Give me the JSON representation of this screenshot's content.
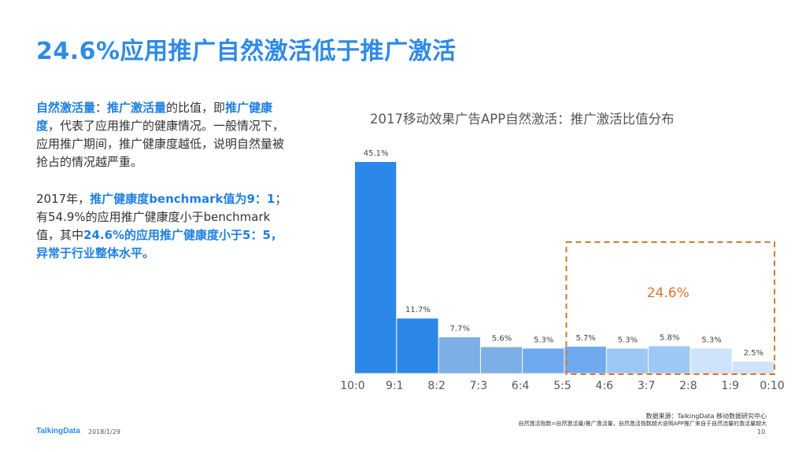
{
  "page": {
    "title": "24.6%应用推广自然激活低于推广激活",
    "logo": "TalkingData",
    "date": "2018/1/29",
    "page_number": "10",
    "source_line1": "数据来源：TalkingData 移动数据研究中心",
    "source_line2": "自然激活指数=自然激活量/推广激活量，自然激活指数越大说明APP推广来自于自然流量的激活量越大"
  },
  "description": {
    "p1": [
      {
        "text": "自然激活量",
        "hl": true
      },
      {
        "text": "：",
        "hl": false
      },
      {
        "text": "推广激活量",
        "hl": true
      },
      {
        "text": "的比值，即",
        "hl": false
      },
      {
        "text": "推广健康度",
        "hl": true
      },
      {
        "text": "，代表了应用推广的健康情况。一般情况下，应用推广期间，推广健康度越低，说明自然量被抢占的情况越严重。",
        "hl": false
      }
    ],
    "p2": [
      {
        "text": "2017年，",
        "hl": false
      },
      {
        "text": "推广健康度benchmark值为9：1",
        "hl": true
      },
      {
        "text": "；有54.9%的应用推广健康度小于benchmark值，其中",
        "hl": false
      },
      {
        "text": "24.6%的应用推广健康度小于5：5，异常于行业整体水平。",
        "hl": true
      }
    ]
  },
  "chart_data": {
    "type": "bar",
    "title": "2017移动效果广告APP自然激活：推广激活比值分布",
    "x_tick_labels": [
      "10:0",
      "9:1",
      "8:2",
      "7:3",
      "6:4",
      "5:5",
      "4:6",
      "3:7",
      "2:8",
      "1:9",
      "0:10"
    ],
    "bins": [
      "10:0-9:1",
      "9:1-8:2",
      "8:2-7:3",
      "7:3-6:4",
      "6:4-5:5",
      "5:5-4:6",
      "4:6-3:7",
      "3:7-2:8",
      "2:8-1:9",
      "1:9-0:10"
    ],
    "values": [
      45.1,
      11.7,
      7.7,
      5.6,
      5.3,
      5.7,
      5.3,
      5.8,
      5.3,
      2.5
    ],
    "data_labels": [
      "45.1%",
      "11.7%",
      "7.7%",
      "5.6%",
      "5.3%",
      "5.7%",
      "5.3%",
      "5.8%",
      "5.3%",
      "2.5%"
    ],
    "colors": [
      "#2B87E8",
      "#2B87E8",
      "#7DAEE6",
      "#7DAEE6",
      "#6FAAF0",
      "#6FAAF0",
      "#9DC8F5",
      "#9DC8F5",
      "#CFE4FA",
      "#CFE4FA"
    ],
    "ylim": [
      0,
      45.1
    ],
    "annotation": {
      "text": "24.6%",
      "bins_covered": [
        5,
        9
      ],
      "color": "#D9762B"
    }
  }
}
